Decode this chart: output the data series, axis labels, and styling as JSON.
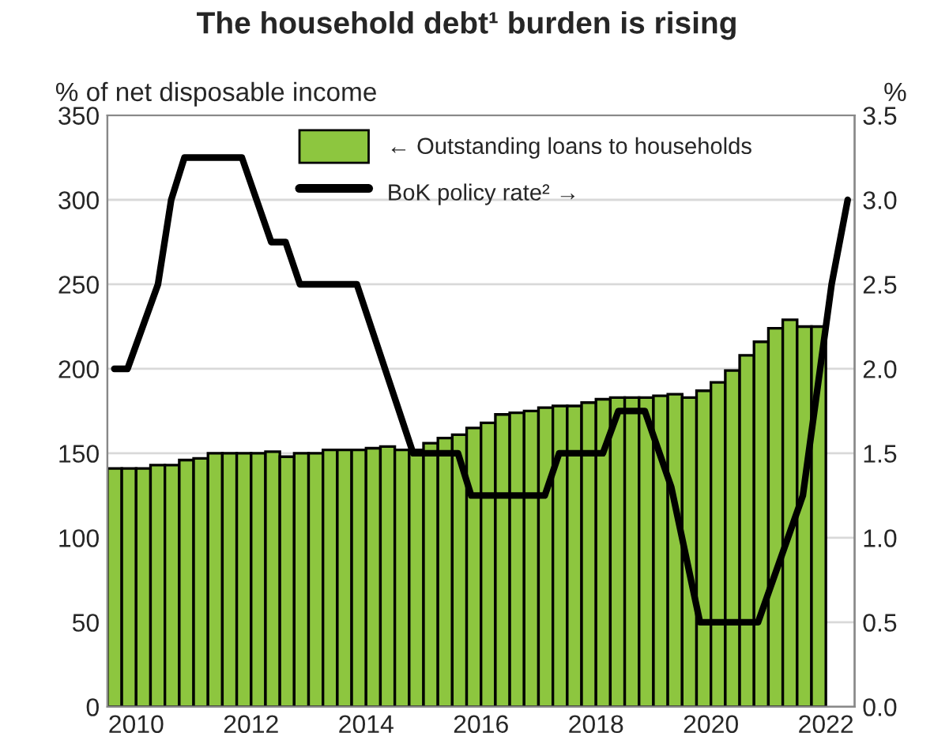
{
  "chart_data": {
    "type": "bar",
    "title": "The household debt¹ burden is rising",
    "ylabel": "% of net disposable income",
    "y2label": "%",
    "xlim": [
      2009.5,
      2022.5
    ],
    "xticks": [
      2010,
      2012,
      2014,
      2016,
      2018,
      2020,
      2022
    ],
    "ylim": [
      0,
      350
    ],
    "yticks": [
      0,
      50,
      100,
      150,
      200,
      250,
      300,
      350
    ],
    "y2lim": [
      0,
      3.5
    ],
    "y2ticks": [
      {
        "value": 0,
        "label": "0.0"
      },
      {
        "value": 0.5,
        "label": "0.5"
      },
      {
        "value": 1,
        "label": "1.0"
      },
      {
        "value": 1.5,
        "label": "1.5"
      },
      {
        "value": 2,
        "label": "2.0"
      },
      {
        "value": 2.5,
        "label": "2.5"
      },
      {
        "value": 3,
        "label": "3.0"
      },
      {
        "value": 3.5,
        "label": "3.5"
      }
    ],
    "grid": "y",
    "legend": "top",
    "series": [
      {
        "name": "← Outstanding loans to households",
        "color": "#8dc63f",
        "x": [
          2009.625,
          2009.875,
          2010.125,
          2010.375,
          2010.625,
          2010.875,
          2011.125,
          2011.375,
          2011.625,
          2011.875,
          2012.125,
          2012.375,
          2012.625,
          2012.875,
          2013.125,
          2013.375,
          2013.625,
          2013.875,
          2014.125,
          2014.375,
          2014.625,
          2014.875,
          2015.125,
          2015.375,
          2015.625,
          2015.875,
          2016.125,
          2016.375,
          2016.625,
          2016.875,
          2017.125,
          2017.375,
          2017.625,
          2017.875,
          2018.125,
          2018.375,
          2018.625,
          2018.875,
          2019.125,
          2019.375,
          2019.625,
          2019.875,
          2020.125,
          2020.375,
          2020.625,
          2020.875,
          2021.125,
          2021.375,
          2021.625,
          2021.875
        ],
        "values": [
          141,
          141,
          141,
          143,
          143,
          146,
          147,
          150,
          150,
          150,
          150,
          151,
          148,
          150,
          150,
          152,
          152,
          152,
          153,
          154,
          152,
          152,
          156,
          159,
          161,
          165,
          168,
          173,
          174,
          175,
          177,
          178,
          178,
          180,
          182,
          183,
          183,
          183,
          184,
          185,
          183,
          187,
          192,
          199,
          208,
          216,
          224,
          229,
          225,
          225
        ]
      },
      {
        "name": "BoK policy rate² →",
        "type": "line",
        "axis": "y2",
        "color": "#000000",
        "x": [
          2009.62,
          2009.85,
          2010.38,
          2010.61,
          2010.84,
          2011.84,
          2012.35,
          2012.6,
          2012.85,
          2013.84,
          2014.82,
          2015.6,
          2015.83,
          2017.11,
          2017.36,
          2018.12,
          2018.39,
          2018.85,
          2019.31,
          2019.81,
          2020.82,
          2021.6,
          2022.1,
          2022.38
        ],
        "values": [
          2.0,
          2.0,
          2.5,
          3.0,
          3.25,
          3.25,
          2.75,
          2.75,
          2.5,
          2.5,
          1.5,
          1.5,
          1.25,
          1.25,
          1.5,
          1.5,
          1.75,
          1.75,
          1.3,
          0.5,
          0.5,
          1.25,
          2.5,
          3.0
        ]
      }
    ]
  }
}
